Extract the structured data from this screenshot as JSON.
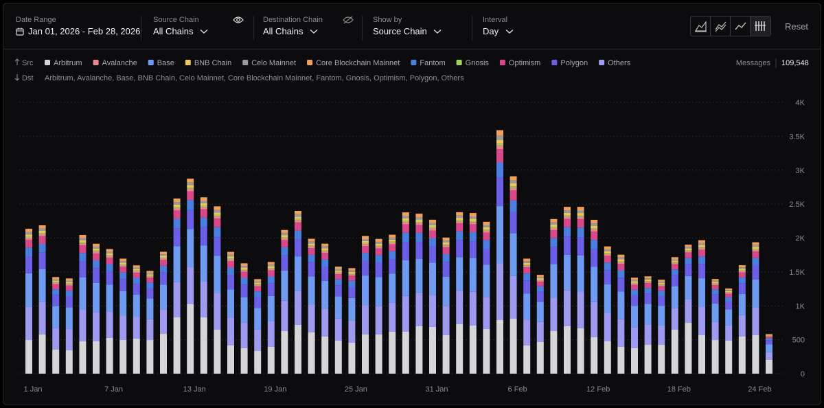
{
  "header": {
    "filters": [
      {
        "label": "Date Range",
        "value": "Jan 01, 2026 - Feb 28, 2026"
      },
      {
        "label": "Source Chain",
        "value": "All Chains"
      },
      {
        "label": "Destination Chain",
        "value": "All Chains"
      },
      {
        "label": "Show by",
        "value": "Source Chain"
      },
      {
        "label": "Interval",
        "value": "Day"
      }
    ],
    "reset": "Reset"
  },
  "rows": {
    "src": "Src",
    "dst": "Dst",
    "dst_list": "Arbitrum, Avalanche, Base, BNB Chain, Celo Mainnet, Core Blockchain Mainnet, Fantom, Gnosis, Optimism, Polygon, Others",
    "messages_label": "Messages",
    "messages_value": "109,548"
  },
  "chart_data": {
    "type": "stacked_bar",
    "categories": [
      "1 Jan",
      null,
      null,
      null,
      null,
      null,
      "7 Jan",
      null,
      null,
      null,
      null,
      null,
      "13 Jan",
      null,
      null,
      null,
      null,
      null,
      "19 Jan",
      null,
      null,
      null,
      null,
      null,
      "25 Jan",
      null,
      null,
      null,
      null,
      null,
      "31 Jan",
      null,
      null,
      null,
      null,
      null,
      "6 Feb",
      null,
      null,
      null,
      null,
      null,
      "12 Feb",
      null,
      null,
      null,
      null,
      null,
      "18 Feb",
      null,
      null,
      null,
      null,
      null,
      "24 Feb",
      null
    ],
    "ylim": [
      0,
      4000
    ],
    "yticks": [
      0,
      500,
      {
        "value": 1000,
        "label": "1K"
      },
      {
        "value": 1500,
        "label": "1.5K"
      },
      {
        "value": 2000,
        "label": "2K"
      },
      {
        "value": 2500,
        "label": "2.5K"
      },
      {
        "value": 3000,
        "label": "3K"
      },
      {
        "value": 3500,
        "label": "3.5K"
      },
      {
        "value": 4000,
        "label": "4K"
      }
    ],
    "grid": true,
    "series": [
      {
        "name": "Arbitrum",
        "color": "#d6d6d8",
        "values": [
          496,
          577,
          354,
          344,
          476,
          476,
          527,
          496,
          516,
          496,
          587,
          830,
          1023,
          830,
          648,
          415,
          375,
          334,
          395,
          628,
          719,
          608,
          547,
          486,
          456,
          577,
          577,
          618,
          618,
          699,
          689,
          567,
          729,
          709,
          658,
          790,
          810,
          415,
          466,
          628,
          699,
          668,
          537,
          476,
          395,
          375,
          425,
          425,
          648,
          749,
          567,
          496,
          486,
          547,
          567,
          203
        ]
      },
      {
        "name": "Avalanche",
        "color": "#e8898d",
        "values": [
          33,
          32,
          21,
          21,
          31,
          29,
          26,
          24,
          22,
          20,
          24,
          35,
          37,
          35,
          36,
          28,
          25,
          21,
          25,
          30,
          34,
          28,
          27,
          22,
          22,
          29,
          28,
          29,
          35,
          33,
          32,
          29,
          33,
          33,
          32,
          56,
          42,
          26,
          20,
          33,
          35,
          36,
          35,
          28,
          27,
          21,
          20,
          19,
          21,
          23,
          28,
          18,
          15,
          21,
          27,
          8
        ]
      },
      {
        "name": "Base",
        "color": "#6f9cf2",
        "values": [
          492,
          483,
          321,
          318,
          471,
          432,
          393,
          360,
          324,
          306,
          363,
          525,
          555,
          531,
          546,
          414,
          375,
          318,
          375,
          447,
          504,
          414,
          411,
          327,
          330,
          435,
          423,
          429,
          528,
          498,
          474,
          432,
          495,
          498,
          474,
          840,
          630,
          384,
          297,
          495,
          528,
          537,
          519,
          420,
          408,
          312,
          303,
          288,
          321,
          345,
          420,
          270,
          231,
          315,
          411,
          114
        ]
      },
      {
        "name": "BNB Chain",
        "color": "#f2c45c",
        "values": [
          33,
          32,
          21,
          21,
          31,
          29,
          26,
          24,
          22,
          20,
          24,
          35,
          37,
          35,
          36,
          28,
          25,
          21,
          25,
          30,
          34,
          28,
          27,
          22,
          22,
          29,
          28,
          29,
          35,
          33,
          32,
          29,
          33,
          33,
          32,
          56,
          42,
          26,
          20,
          33,
          35,
          36,
          35,
          28,
          27,
          21,
          20,
          19,
          21,
          23,
          28,
          18,
          15,
          21,
          27,
          8
        ]
      },
      {
        "name": "Celo Mainnet",
        "color": "#9a9aa2",
        "values": [
          33,
          32,
          21,
          21,
          31,
          29,
          26,
          24,
          22,
          20,
          24,
          35,
          37,
          35,
          36,
          28,
          25,
          21,
          25,
          30,
          34,
          28,
          27,
          22,
          22,
          29,
          28,
          29,
          35,
          33,
          32,
          29,
          33,
          33,
          32,
          56,
          42,
          26,
          20,
          33,
          35,
          36,
          35,
          28,
          27,
          21,
          20,
          19,
          21,
          23,
          28,
          18,
          15,
          21,
          27,
          8
        ]
      },
      {
        "name": "Core Blockchain Mainnet",
        "color": "#f0a05a",
        "values": [
          49,
          48,
          32,
          32,
          47,
          43,
          39,
          36,
          32,
          31,
          36,
          53,
          56,
          53,
          55,
          41,
          38,
          32,
          38,
          45,
          50,
          41,
          41,
          33,
          33,
          44,
          42,
          43,
          53,
          50,
          47,
          43,
          50,
          50,
          47,
          84,
          63,
          38,
          30,
          50,
          53,
          54,
          52,
          42,
          41,
          31,
          30,
          29,
          32,
          35,
          42,
          27,
          23,
          32,
          41,
          11
        ]
      },
      {
        "name": "Fantom",
        "color": "#4a7fe0",
        "values": [
          131,
          129,
          86,
          85,
          126,
          115,
          105,
          96,
          86,
          82,
          97,
          140,
          148,
          142,
          146,
          110,
          100,
          85,
          100,
          119,
          134,
          110,
          110,
          87,
          88,
          116,
          113,
          114,
          141,
          133,
          126,
          115,
          132,
          133,
          126,
          224,
          168,
          102,
          79,
          132,
          141,
          143,
          138,
          112,
          109,
          83,
          81,
          77,
          86,
          92,
          112,
          72,
          62,
          84,
          110,
          30
        ]
      },
      {
        "name": "Gnosis",
        "color": "#9fd35f",
        "values": [
          16,
          16,
          11,
          11,
          16,
          14,
          13,
          12,
          11,
          10,
          12,
          18,
          19,
          18,
          18,
          14,
          13,
          11,
          13,
          15,
          17,
          14,
          14,
          11,
          11,
          15,
          14,
          14,
          18,
          17,
          16,
          14,
          17,
          17,
          16,
          28,
          21,
          13,
          10,
          17,
          18,
          18,
          17,
          14,
          14,
          10,
          10,
          10,
          11,
          12,
          14,
          9,
          8,
          11,
          14,
          4
        ]
      },
      {
        "name": "Optimism",
        "color": "#d9488a",
        "values": [
          115,
          113,
          75,
          74,
          110,
          101,
          92,
          84,
          76,
          71,
          85,
          123,
          130,
          124,
          127,
          97,
          88,
          74,
          88,
          104,
          118,
          97,
          96,
          76,
          77,
          102,
          99,
          100,
          123,
          116,
          111,
          101,
          116,
          116,
          111,
          196,
          147,
          90,
          69,
          116,
          123,
          125,
          121,
          98,
          95,
          73,
          71,
          67,
          75,
          81,
          98,
          63,
          54,
          74,
          96,
          27
        ]
      },
      {
        "name": "Polygon",
        "color": "#6a5fe6",
        "values": [
          246,
          242,
          161,
          159,
          236,
          216,
          197,
          180,
          162,
          153,
          182,
          263,
          278,
          266,
          273,
          207,
          188,
          159,
          188,
          224,
          252,
          207,
          206,
          164,
          165,
          218,
          212,
          215,
          264,
          249,
          237,
          216,
          248,
          249,
          237,
          420,
          315,
          192,
          149,
          248,
          264,
          269,
          260,
          210,
          204,
          156,
          152,
          144,
          161,
          173,
          210,
          135,
          116,
          158,
          206,
          57
        ]
      },
      {
        "name": "Others",
        "color": "#9d9af0",
        "values": [
          492,
          483,
          321,
          318,
          471,
          432,
          393,
          360,
          324,
          306,
          363,
          525,
          555,
          531,
          546,
          414,
          375,
          318,
          375,
          447,
          504,
          414,
          411,
          327,
          330,
          435,
          423,
          429,
          528,
          498,
          474,
          432,
          495,
          498,
          474,
          840,
          630,
          384,
          297,
          495,
          528,
          537,
          519,
          420,
          408,
          312,
          303,
          288,
          321,
          345,
          420,
          270,
          231,
          315,
          411,
          114
        ]
      }
    ]
  }
}
